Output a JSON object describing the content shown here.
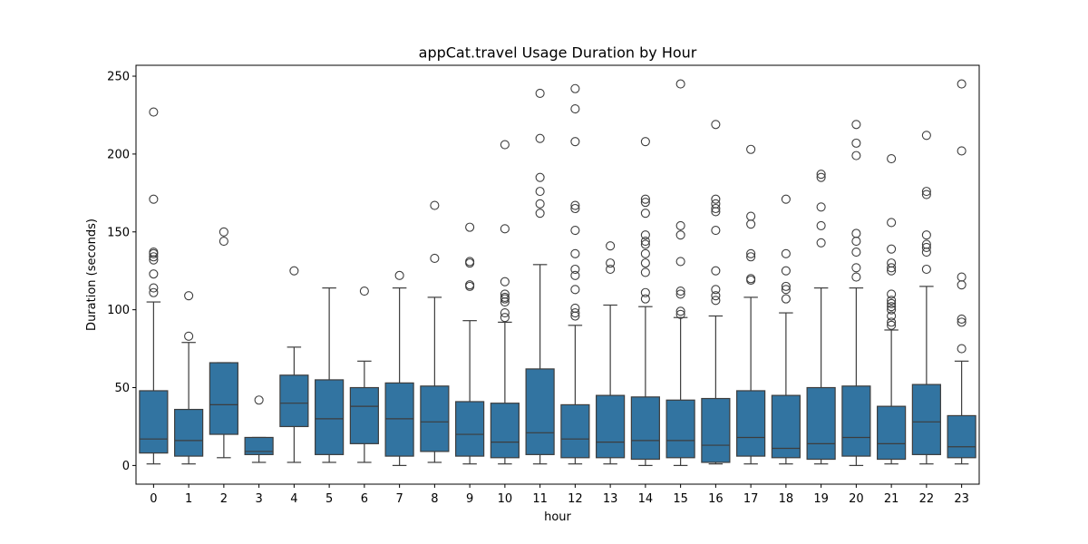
{
  "chart_data": {
    "type": "box",
    "title": "appCat.travel Usage Duration by Hour",
    "xlabel": "hour",
    "ylabel": "Duration (seconds)",
    "ylim": [
      -12,
      257
    ],
    "yticks": [
      0,
      50,
      100,
      150,
      200,
      250
    ],
    "grid": false,
    "box_color": "#3274a1",
    "line_color": "#3d3d3d",
    "categories": [
      "0",
      "1",
      "2",
      "3",
      "4",
      "5",
      "6",
      "7",
      "8",
      "9",
      "10",
      "11",
      "12",
      "13",
      "14",
      "15",
      "16",
      "17",
      "18",
      "19",
      "20",
      "21",
      "22",
      "23"
    ],
    "boxes": [
      {
        "whislo": 1,
        "q1": 8,
        "med": 17,
        "q3": 48,
        "whishi": 105,
        "fliers": [
          111,
          114,
          123,
          132,
          134,
          136,
          137,
          171,
          227
        ]
      },
      {
        "whislo": 1,
        "q1": 6,
        "med": 16,
        "q3": 36,
        "whishi": 79,
        "fliers": [
          83,
          109
        ]
      },
      {
        "whislo": 5,
        "q1": 20,
        "med": 39,
        "q3": 66,
        "whishi": 66,
        "fliers": [
          144,
          150
        ]
      },
      {
        "whislo": 2,
        "q1": 7,
        "med": 9,
        "q3": 18,
        "whishi": 18,
        "fliers": [
          42
        ]
      },
      {
        "whislo": 2,
        "q1": 25,
        "med": 40,
        "q3": 58,
        "whishi": 76,
        "fliers": [
          125
        ]
      },
      {
        "whislo": 2,
        "q1": 7,
        "med": 30,
        "q3": 55,
        "whishi": 114,
        "fliers": []
      },
      {
        "whislo": 2,
        "q1": 14,
        "med": 38,
        "q3": 50,
        "whishi": 67,
        "fliers": [
          112
        ]
      },
      {
        "whislo": 0,
        "q1": 6,
        "med": 30,
        "q3": 53,
        "whishi": 114,
        "fliers": [
          122
        ]
      },
      {
        "whislo": 2,
        "q1": 9,
        "med": 28,
        "q3": 51,
        "whishi": 108,
        "fliers": [
          133,
          167
        ]
      },
      {
        "whislo": 1,
        "q1": 6,
        "med": 20,
        "q3": 41,
        "whishi": 93,
        "fliers": [
          115,
          116,
          130,
          131,
          153
        ]
      },
      {
        "whislo": 1,
        "q1": 5,
        "med": 15,
        "q3": 40,
        "whishi": 92,
        "fliers": [
          95,
          98,
          105,
          107,
          108,
          110,
          118,
          152,
          206
        ]
      },
      {
        "whislo": 1,
        "q1": 7,
        "med": 21,
        "q3": 62,
        "whishi": 129,
        "fliers": [
          162,
          168,
          176,
          185,
          210,
          239
        ]
      },
      {
        "whislo": 1,
        "q1": 5,
        "med": 17,
        "q3": 39,
        "whishi": 90,
        "fliers": [
          96,
          98,
          101,
          113,
          122,
          126,
          136,
          151,
          165,
          167,
          208,
          229,
          242
        ]
      },
      {
        "whislo": 1,
        "q1": 5,
        "med": 15,
        "q3": 45,
        "whishi": 103,
        "fliers": [
          126,
          130,
          141
        ]
      },
      {
        "whislo": 0,
        "q1": 4,
        "med": 16,
        "q3": 44,
        "whishi": 102,
        "fliers": [
          107,
          111,
          124,
          130,
          136,
          142,
          144,
          148,
          162,
          169,
          171,
          208
        ]
      },
      {
        "whislo": 0,
        "q1": 5,
        "med": 16,
        "q3": 42,
        "whishi": 95,
        "fliers": [
          97,
          99,
          110,
          112,
          131,
          148,
          154,
          245
        ]
      },
      {
        "whislo": 1,
        "q1": 2,
        "med": 13,
        "q3": 43,
        "whishi": 96,
        "fliers": [
          106,
          109,
          113,
          125,
          151,
          163,
          165,
          168,
          171,
          219
        ]
      },
      {
        "whislo": 1,
        "q1": 6,
        "med": 18,
        "q3": 48,
        "whishi": 108,
        "fliers": [
          119,
          120,
          134,
          136,
          155,
          160,
          203
        ]
      },
      {
        "whislo": 1,
        "q1": 5,
        "med": 11,
        "q3": 45,
        "whishi": 98,
        "fliers": [
          107,
          113,
          115,
          125,
          136,
          171
        ]
      },
      {
        "whislo": 1,
        "q1": 4,
        "med": 14,
        "q3": 50,
        "whishi": 114,
        "fliers": [
          143,
          154,
          166,
          185,
          187
        ]
      },
      {
        "whislo": 0,
        "q1": 6,
        "med": 18,
        "q3": 51,
        "whishi": 114,
        "fliers": [
          121,
          127,
          137,
          144,
          149,
          199,
          207,
          219
        ]
      },
      {
        "whislo": 1,
        "q1": 4,
        "med": 14,
        "q3": 38,
        "whishi": 87,
        "fliers": [
          90,
          92,
          96,
          100,
          102,
          104,
          106,
          110,
          125,
          127,
          130,
          139,
          156,
          197
        ]
      },
      {
        "whislo": 1,
        "q1": 7,
        "med": 28,
        "q3": 52,
        "whishi": 115,
        "fliers": [
          126,
          137,
          140,
          142,
          148,
          174,
          176,
          212
        ]
      },
      {
        "whislo": 1,
        "q1": 5,
        "med": 12,
        "q3": 32,
        "whishi": 67,
        "fliers": [
          75,
          92,
          94,
          116,
          121,
          202,
          245
        ]
      }
    ]
  }
}
